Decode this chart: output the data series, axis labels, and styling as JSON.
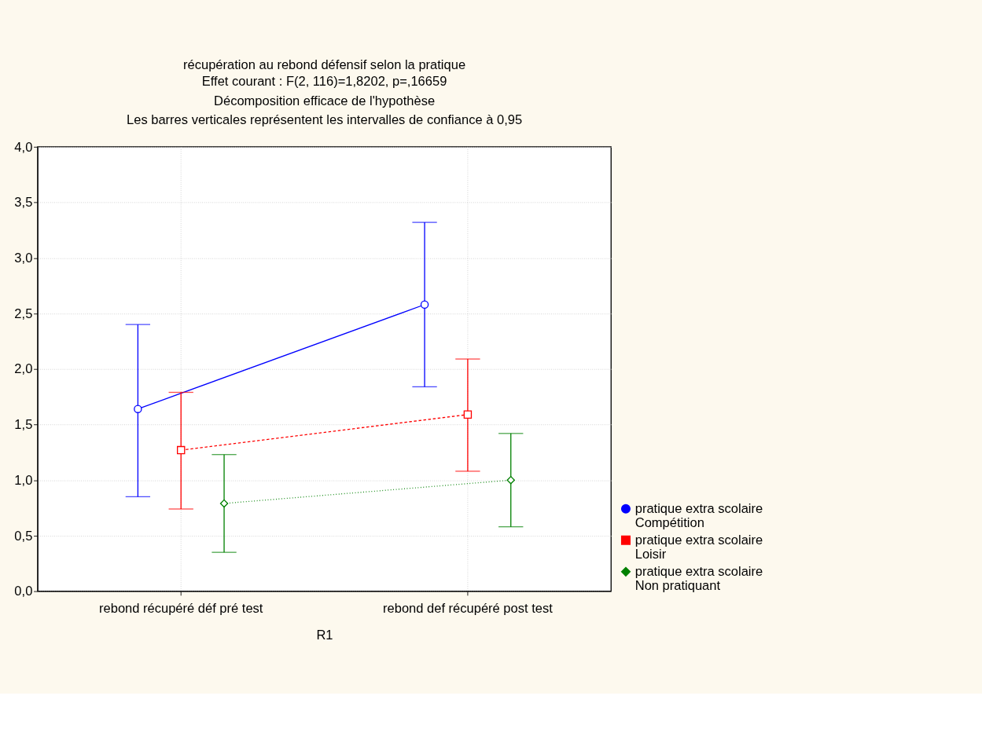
{
  "chart_data": {
    "type": "line",
    "title": "récupération au rebond défensif selon la pratique",
    "subtitle": [
      "Effet courant : F(2, 116)=1,8202, p=,16659",
      "Décomposition efficace de l'hypothèse",
      "Les barres verticales représentent les intervalles de confiance à 0,95"
    ],
    "xlabel": "R1",
    "categories": [
      "rebond récupéré déf pré test",
      "rebond def récupéré post test"
    ],
    "series": [
      {
        "name": "pratique extra scolaire\nCompétition",
        "color": "#0000ff",
        "values": [
          1.64,
          2.58
        ],
        "errors": [
          [
            0.85,
            2.4
          ],
          [
            1.84,
            3.32
          ]
        ],
        "marker": "circle",
        "line_style": "solid"
      },
      {
        "name": "pratique extra scolaire\nLoisir",
        "color": "#ff0000",
        "values": [
          1.27,
          1.59
        ],
        "errors": [
          [
            0.74,
            1.79
          ],
          [
            1.08,
            2.09
          ]
        ],
        "marker": "square",
        "line_style": "dashed"
      },
      {
        "name": "pratique extra scolaire\nNon pratiquant",
        "color": "#008000",
        "values": [
          0.79,
          1.0
        ],
        "errors": [
          [
            0.35,
            1.23
          ],
          [
            0.58,
            1.42
          ]
        ],
        "marker": "diamond",
        "line_style": "dotted"
      }
    ],
    "ylim": [
      0,
      4
    ],
    "yticks": [
      {
        "value": 0,
        "label": "0,0"
      },
      {
        "value": 0.5,
        "label": "0,5"
      },
      {
        "value": 1,
        "label": "1,0"
      },
      {
        "value": 1.5,
        "label": "1,5"
      },
      {
        "value": 2,
        "label": "2,0"
      },
      {
        "value": 2.5,
        "label": "2,5"
      },
      {
        "value": 3,
        "label": "3,0"
      },
      {
        "value": 3.5,
        "label": "3,5"
      },
      {
        "value": 4,
        "label": "4,0"
      }
    ],
    "grid": true,
    "legend": "right"
  }
}
